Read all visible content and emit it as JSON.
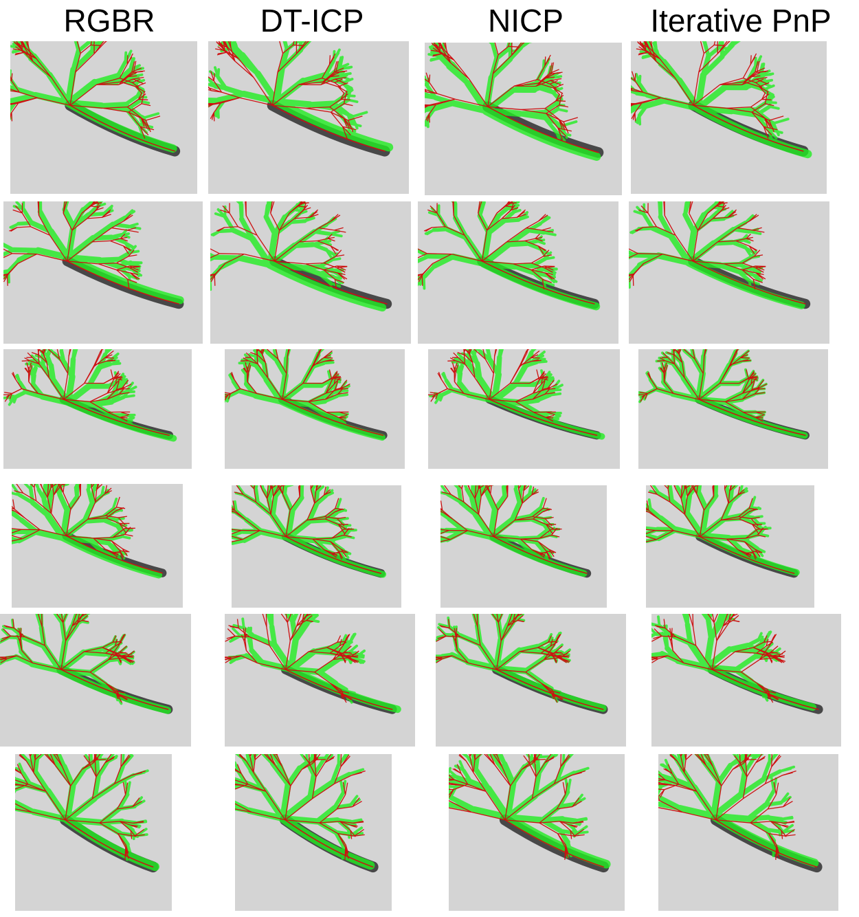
{
  "columns": [
    "RGBR",
    "DT-ICP",
    "NICP",
    "Iterative PnP"
  ],
  "overlay_colors": {
    "projected_vessels": "#22ee22",
    "vessel_centerlines": "#cc1111",
    "angiogram_background": "#d4d4d4",
    "contrast_vessels": "#1a1a1a"
  },
  "grid": {
    "rows": 6,
    "cols": 4
  }
}
